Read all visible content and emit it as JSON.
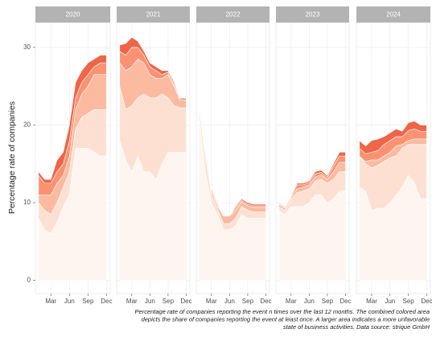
{
  "chart_data": {
    "type": "stacked-area",
    "ylabel": "Percentage rate of companies",
    "caption": [
      "Percentage rate of companies reporting the event n times over the last 12 months. The combined colored area",
      "depicts the share of companies reporting the event at least once. A larger area indicates a more unfavorable",
      "state of business activities. Data source: strique GmbH"
    ],
    "x": [
      1,
      2,
      3,
      4,
      5,
      6,
      7,
      8,
      9,
      10,
      11,
      12
    ],
    "xlim": [
      0.5,
      12.6
    ],
    "xticks": [
      {
        "value": 3,
        "label": "Mar"
      },
      {
        "value": 6,
        "label": "Jun"
      },
      {
        "value": 9,
        "label": "Sep"
      },
      {
        "value": 12,
        "label": "Dec"
      }
    ],
    "ylim": [
      -1.7,
      33.2
    ],
    "yticks": [
      0,
      10,
      20,
      30
    ],
    "grid": true,
    "colors": [
      "#fff5f0",
      "#fee0d2",
      "#fcbba1",
      "#fc9272",
      "#ef6548"
    ],
    "facets": [
      {
        "title": "2020",
        "series": [
          {
            "values": [
              8,
              6.5,
              6,
              7.5,
              9.5,
              11,
              17,
              17,
              17,
              16.5,
              16,
              16
            ]
          },
          {
            "values": [
              2,
              2.5,
              2.5,
              2.5,
              2.5,
              3,
              2.5,
              4,
              4.5,
              5.5,
              6,
              6
            ]
          },
          {
            "values": [
              1,
              2,
              2.5,
              2.5,
              1.5,
              2,
              2.5,
              3,
              3.5,
              4.5,
              4.5,
              4.5
            ]
          },
          {
            "values": [
              2.5,
              1.5,
              1.5,
              1.5,
              1.5,
              2,
              1.5,
              1.5,
              1.5,
              1,
              1.5,
              1.5
            ]
          },
          {
            "values": [
              0.5,
              0.5,
              0.5,
              1.5,
              1.5,
              2,
              2,
              1.5,
              1.5,
              1,
              1,
              1
            ]
          }
        ]
      },
      {
        "title": "2021",
        "series": [
          {
            "values": [
              18,
              15.5,
              14,
              16,
              14,
              14,
              13,
              15,
              16.5,
              16.5,
              16.5,
              16.5
            ]
          },
          {
            "values": [
              7,
              6.5,
              8.5,
              7.5,
              10,
              9.5,
              10.5,
              9,
              7,
              6,
              5.7,
              5.7
            ]
          },
          {
            "values": [
              3,
              5,
              5,
              5,
              4,
              3,
              2.5,
              2,
              3,
              2.5,
              1,
              1
            ]
          },
          {
            "values": [
              1.5,
              2,
              2.5,
              1.5,
              1,
              1,
              1,
              0.5,
              0.3,
              0.2,
              0.2,
              0.2
            ]
          },
          {
            "values": [
              0.8,
              1.5,
              1.3,
              0.8,
              0.5,
              0.5,
              0.5,
              0.5,
              0.2,
              0.3,
              0.1,
              0.1
            ]
          }
        ]
      },
      {
        "title": "2022",
        "series": [
          {
            "values": [
              21,
              14,
              10,
              8.5,
              6.5,
              6.5,
              7,
              8.5,
              8,
              8,
              8,
              8
            ]
          },
          {
            "values": [
              1,
              2,
              1,
              0.7,
              0.8,
              0.8,
              1,
              1,
              1,
              0.8,
              0.8,
              0.8
            ]
          },
          {
            "values": [
              0.3,
              0.5,
              0.5,
              0.4,
              1,
              1,
              1,
              0.6,
              0.6,
              0.6,
              0.6,
              0.6
            ]
          },
          {
            "values": [
              0.1,
              0.3,
              0.3,
              0.2,
              0,
              0,
              0.3,
              0.2,
              0.2,
              0.2,
              0.2,
              0.2
            ]
          },
          {
            "values": [
              0.1,
              0.2,
              0.2,
              0.2,
              0,
              0,
              0.2,
              0.2,
              0.2,
              0.2,
              0.2,
              0.2
            ]
          }
        ]
      },
      {
        "title": "2023",
        "series": [
          {
            "values": [
              9,
              8.5,
              9.5,
              9.5,
              9.5,
              10,
              11,
              11,
              10,
              10.5,
              11.5,
              11.5
            ]
          },
          {
            "values": [
              0.5,
              0.5,
              1,
              1.8,
              2,
              1.8,
              1.8,
              2,
              2.5,
              2.5,
              2.5,
              2.5
            ]
          },
          {
            "values": [
              0.3,
              0.3,
              0.3,
              0.5,
              0.5,
              0.5,
              0.5,
              0.6,
              0.5,
              1,
              1.2,
              1.2
            ]
          },
          {
            "values": [
              0.1,
              0.1,
              0.1,
              0.5,
              0.3,
              0.3,
              0.4,
              0.3,
              0.3,
              0.7,
              0.8,
              0.8
            ]
          },
          {
            "values": [
              0.1,
              0.1,
              0.1,
              0.2,
              0.2,
              0.2,
              0.3,
              0.3,
              0.2,
              0.3,
              0.5,
              0.5
            ]
          }
        ]
      },
      {
        "title": "2024",
        "series": [
          {
            "values": [
              12,
              11.5,
              9,
              9.3,
              9.3,
              10,
              11,
              12,
              13.5,
              12.5,
              10.5,
              10.5
            ]
          },
          {
            "values": [
              4,
              3.5,
              5.5,
              5.5,
              6,
              5.8,
              5,
              5,
              4,
              5,
              7,
              7
            ]
          },
          {
            "values": [
              0,
              0.3,
              1,
              0.7,
              0.7,
              0.7,
              1.3,
              0.5,
              0.5,
              0.7,
              0.7,
              0.7
            ]
          },
          {
            "values": [
              1,
              1,
              1,
              1.2,
              1.5,
              1.5,
              1.2,
              1,
              1.3,
              1.3,
              1,
              1
            ]
          },
          {
            "values": [
              1,
              1,
              1.5,
              1.5,
              1,
              1,
              1,
              0.7,
              1,
              1,
              0.8,
              0.8
            ]
          }
        ]
      }
    ]
  }
}
